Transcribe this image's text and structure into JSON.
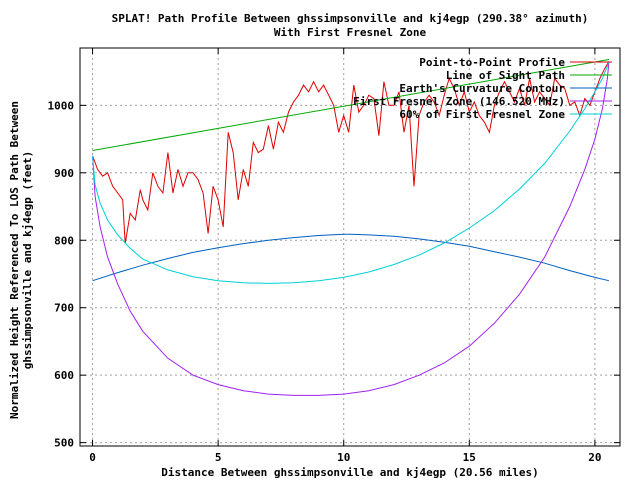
{
  "chart_data": {
    "type": "line",
    "title": "SPLAT! Path Profile Between ghssimpsonville and kj4egp (290.38° azimuth)",
    "subtitle": "With First Fresnel Zone",
    "xlabel": "Distance Between ghssimpsonville and kj4egp (20.56 miles)",
    "ylabel_line1": "Normalized Height Referenced To LOS Path Between",
    "ylabel_line2": "ghssimpsonville and kj4egp (feet)",
    "xlim": [
      -0.5,
      21
    ],
    "ylim": [
      495,
      1085
    ],
    "x_ticks": [
      0,
      5,
      10,
      15,
      20
    ],
    "y_ticks": [
      500,
      600,
      700,
      800,
      900,
      1000
    ],
    "grid": true,
    "legend_position": "top-right",
    "colors": {
      "profile": "#dd0000",
      "los": "#00aa00",
      "curvature": "#0060c0",
      "fresnel": "#a020f0",
      "fresnel60": "#00d0d8"
    },
    "series": [
      {
        "key": "profile",
        "name": "Point-to-Point Profile",
        "x": [
          0,
          0.2,
          0.4,
          0.6,
          0.8,
          1.0,
          1.2,
          1.3,
          1.5,
          1.7,
          1.9,
          2.0,
          2.2,
          2.4,
          2.6,
          2.8,
          3.0,
          3.2,
          3.4,
          3.6,
          3.8,
          4.0,
          4.2,
          4.4,
          4.6,
          4.8,
          5.0,
          5.2,
          5.4,
          5.6,
          5.8,
          6.0,
          6.2,
          6.4,
          6.6,
          6.8,
          7.0,
          7.2,
          7.4,
          7.6,
          7.8,
          8.0,
          8.2,
          8.4,
          8.6,
          8.8,
          9.0,
          9.2,
          9.4,
          9.6,
          9.8,
          10.0,
          10.2,
          10.4,
          10.6,
          10.8,
          11.0,
          11.2,
          11.4,
          11.6,
          11.8,
          12.0,
          12.2,
          12.4,
          12.6,
          12.8,
          13.0,
          13.2,
          13.4,
          13.6,
          13.8,
          14.0,
          14.2,
          14.4,
          14.6,
          14.8,
          15.0,
          15.2,
          15.4,
          15.6,
          15.8,
          16.0,
          16.2,
          16.4,
          16.6,
          16.8,
          17.0,
          17.2,
          17.4,
          17.6,
          17.8,
          18.0,
          18.2,
          18.4,
          18.6,
          18.8,
          19.0,
          19.2,
          19.4,
          19.6,
          19.8,
          20.0,
          20.2,
          20.4,
          20.56
        ],
        "y": [
          925,
          905,
          895,
          900,
          880,
          870,
          860,
          795,
          840,
          830,
          875,
          860,
          845,
          900,
          880,
          870,
          930,
          870,
          905,
          880,
          900,
          900,
          890,
          870,
          810,
          880,
          860,
          820,
          960,
          930,
          860,
          905,
          880,
          945,
          930,
          935,
          970,
          935,
          975,
          960,
          990,
          1005,
          1015,
          1030,
          1020,
          1035,
          1020,
          1030,
          1015,
          1000,
          960,
          985,
          960,
          1030,
          990,
          1000,
          1015,
          1010,
          955,
          1035,
          1000,
          1000,
          1020,
          960,
          1000,
          880,
          985,
          1005,
          1015,
          1005,
          985,
          1015,
          1040,
          1025,
          1000,
          1020,
          990,
          1005,
          985,
          975,
          960,
          1000,
          1020,
          1035,
          1020,
          1005,
          1025,
          1000,
          1040,
          1005,
          1020,
          1010,
          1000,
          1040,
          1030,
          1025,
          1000,
          1005,
          985,
          1010,
          1000,
          1020,
          1040,
          1055,
          1065
        ]
      },
      {
        "key": "los",
        "name": "Line of Sight Path",
        "x": [
          0,
          20.56
        ],
        "y": [
          933,
          1068
        ]
      },
      {
        "key": "curvature",
        "name": "Earth's Curvature Contour",
        "x": [
          0,
          1,
          2,
          3,
          4,
          5,
          6,
          7,
          8,
          9,
          10,
          10.28,
          11,
          12,
          13,
          14,
          15,
          16,
          17,
          18,
          19,
          20,
          20.56
        ],
        "y": [
          740,
          752,
          763,
          773,
          782,
          789,
          795,
          800,
          804,
          807,
          809,
          809,
          808,
          806,
          802,
          797,
          791,
          783,
          775,
          766,
          755,
          745,
          740
        ]
      },
      {
        "key": "fresnel",
        "name": "First Fresnel Zone (146.520 MHz)",
        "x": [
          0,
          0.1,
          0.3,
          0.6,
          1.0,
          1.5,
          2.0,
          3.0,
          4.0,
          5.0,
          6.0,
          7.0,
          8.0,
          9.0,
          10.0,
          11.0,
          12.0,
          13.0,
          14.0,
          15.0,
          16.0,
          17.0,
          18.0,
          19.0,
          19.6,
          20.0,
          20.3,
          20.5,
          20.56
        ],
        "y": [
          925,
          865,
          820,
          775,
          735,
          695,
          665,
          625,
          600,
          586,
          577,
          572,
          570,
          570,
          572,
          577,
          586,
          600,
          618,
          643,
          677,
          720,
          775,
          850,
          905,
          950,
          995,
          1040,
          1065
        ]
      },
      {
        "key": "fresnel60",
        "name": "60% of First Fresnel Zone",
        "x": [
          0,
          0.1,
          0.3,
          0.6,
          1.0,
          1.5,
          2.0,
          3.0,
          4.0,
          5.0,
          6.0,
          7.0,
          8.0,
          9.0,
          10.0,
          11.0,
          12.0,
          13.0,
          14.0,
          15.0,
          16.0,
          17.0,
          18.0,
          19.0,
          19.6,
          20.0,
          20.3,
          20.5,
          20.56
        ],
        "y": [
          925,
          882,
          855,
          830,
          808,
          788,
          772,
          756,
          746,
          740,
          737,
          736,
          737,
          740,
          745,
          753,
          764,
          778,
          796,
          818,
          844,
          876,
          914,
          962,
          995,
          1020,
          1040,
          1058,
          1065
        ]
      }
    ]
  }
}
